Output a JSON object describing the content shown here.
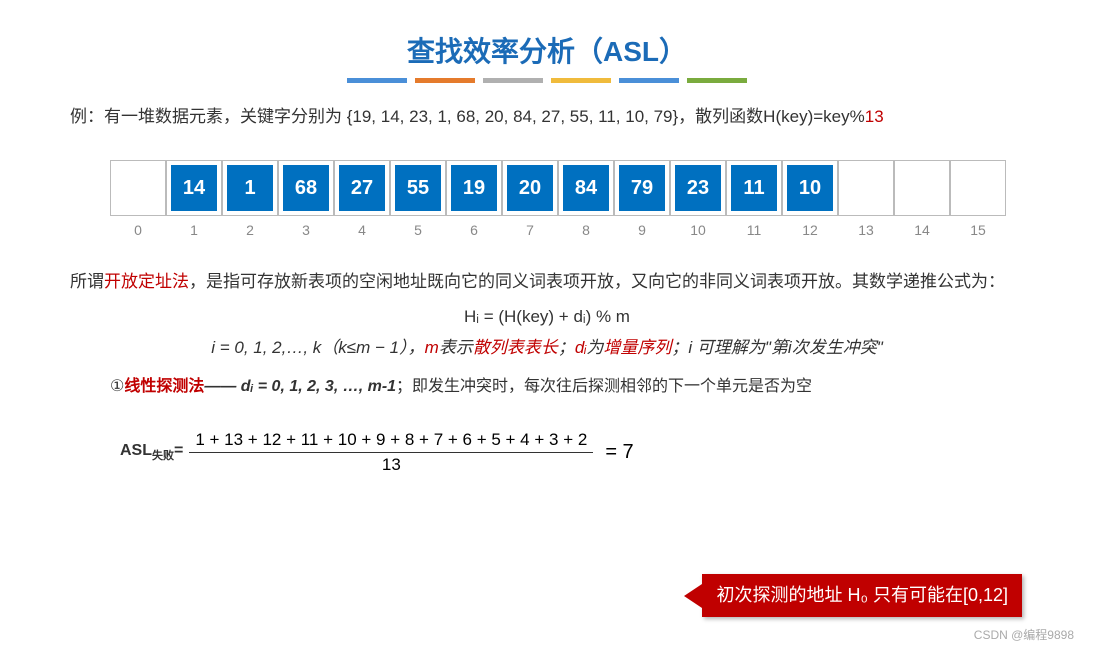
{
  "title": "查找效率分析（ASL）",
  "colorBars": [
    "#4a8fd8",
    "#e57b2c",
    "#b0b0b0",
    "#f0bb3c",
    "#4a8fd8",
    "#7aab3e"
  ],
  "example": {
    "prefix": "例：有一堆数据元素，关键字分别为 {19, 14, 23, 1, 68, 20, 84, 27, 55, 11, 10, 79}，散列函数H(key)=key%",
    "modulus": "13"
  },
  "table": {
    "slots": [
      {
        "idx": "0",
        "val": ""
      },
      {
        "idx": "1",
        "val": "14"
      },
      {
        "idx": "2",
        "val": "1"
      },
      {
        "idx": "3",
        "val": "68"
      },
      {
        "idx": "4",
        "val": "27"
      },
      {
        "idx": "5",
        "val": "55"
      },
      {
        "idx": "6",
        "val": "19"
      },
      {
        "idx": "7",
        "val": "20"
      },
      {
        "idx": "8",
        "val": "84"
      },
      {
        "idx": "9",
        "val": "79"
      },
      {
        "idx": "10",
        "val": "23"
      },
      {
        "idx": "11",
        "val": "11"
      },
      {
        "idx": "12",
        "val": "10"
      },
      {
        "idx": "13",
        "val": ""
      },
      {
        "idx": "14",
        "val": ""
      },
      {
        "idx": "15",
        "val": ""
      }
    ]
  },
  "para": {
    "t1": "所谓",
    "red1": "开放定址法",
    "t2": "，是指可存放新表项的空闲地址既向它的同义词表项开放，又向它的非同义词表项开放。其数学递推公式为："
  },
  "formula1": "Hᵢ = (H(key) + dᵢ) % m",
  "formula2": {
    "f1": "i = 0, 1, 2,…, k（k≤m − 1），",
    "f2a": "m",
    "f2b": "表示",
    "f2c": "散列表表长",
    "f3a": "；",
    "f3b": "dᵢ",
    "f3c": "为",
    "f3d": "增量序列",
    "f4": "；i 可理解为\"第i次发生冲突\""
  },
  "probe": {
    "p1": "①",
    "p2": "线性探测法",
    "p3": "—— dᵢ = 0, 1, 2, 3, …, m-1",
    "p4": "；即发生冲突时，每次往后探测相邻的下一个单元是否为空"
  },
  "asl": {
    "label": "ASL",
    "sub": "失败",
    "eq": "=",
    "numerator": "1 + 13 + 12 + 11 + 10 + 9 + 8 + 7 + 6 + 5 + 4 + 3 + 2",
    "denominator": "13",
    "result": " = 7"
  },
  "callout": "初次探测的地址 H₀ 只有可能在[0,12]",
  "footer": "CSDN @编程9898"
}
